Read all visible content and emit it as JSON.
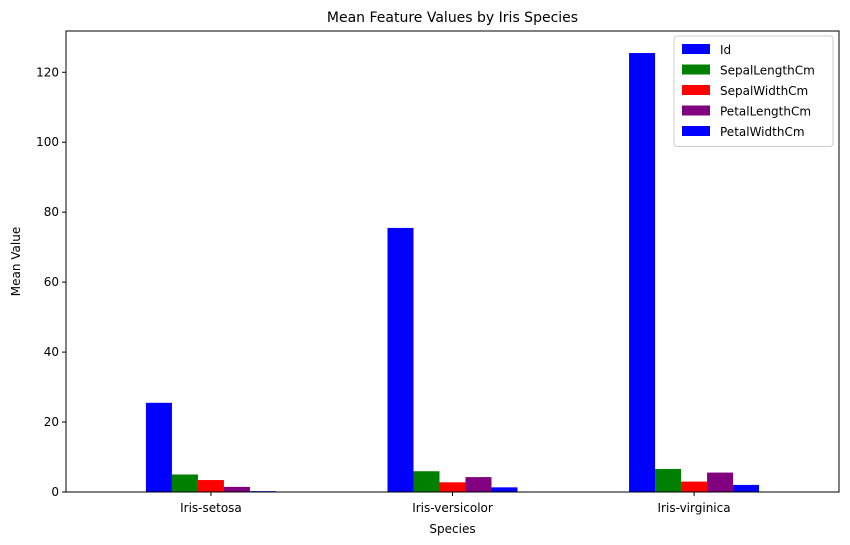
{
  "chart_data": {
    "type": "bar",
    "title": "Mean Feature Values by Iris Species",
    "xlabel": "Species",
    "ylabel": "Mean Value",
    "categories": [
      "Iris-setosa",
      "Iris-versicolor",
      "Iris-virginica"
    ],
    "series": [
      {
        "name": "Id",
        "color": "#0000ff",
        "values": [
          25.5,
          75.5,
          125.5
        ]
      },
      {
        "name": "SepalLengthCm",
        "color": "#008000",
        "values": [
          5.006,
          5.936,
          6.588
        ]
      },
      {
        "name": "SepalWidthCm",
        "color": "#ff0000",
        "values": [
          3.418,
          2.77,
          2.974
        ]
      },
      {
        "name": "PetalLengthCm",
        "color": "#800080",
        "values": [
          1.464,
          4.26,
          5.552
        ]
      },
      {
        "name": "PetalWidthCm",
        "color": "#0000ff",
        "values": [
          0.244,
          1.326,
          2.026
        ]
      }
    ],
    "ylim": [
      0,
      131.8
    ],
    "yticks": [
      0,
      20,
      40,
      60,
      80,
      100,
      120
    ],
    "grid": false,
    "legend_position": "top-right"
  }
}
